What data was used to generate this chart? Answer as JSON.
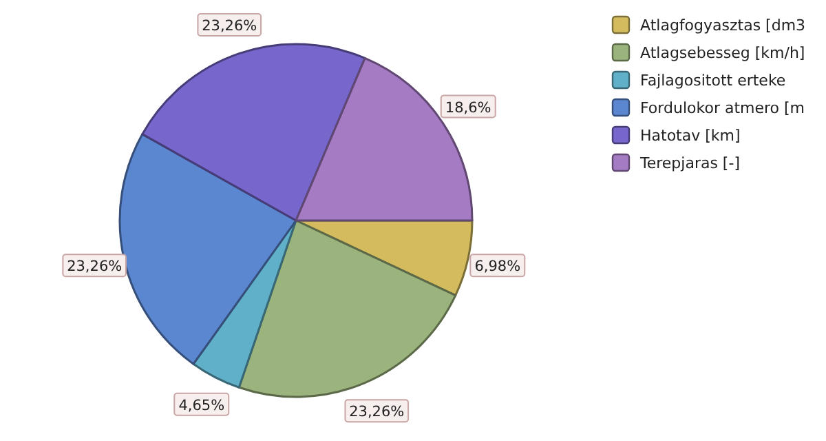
{
  "chart_data": {
    "type": "pie",
    "categories": [
      "Atlagfogyasztas [dm3",
      "Atlagsebesseg [km/h]",
      "Fajlagositott erteke",
      "Fordulokor atmero [m",
      "Hatotav [km]",
      "Terepjaras [-]"
    ],
    "values": [
      6.98,
      23.26,
      4.65,
      23.26,
      23.26,
      18.6
    ],
    "value_labels": [
      "6,98%",
      "23,26%",
      "4,65%",
      "23,26%",
      "23,26%",
      "18,6%"
    ],
    "colors": [
      "#d4bc5e",
      "#9bb37c",
      "#5fb0c8",
      "#5b87d0",
      "#7766cc",
      "#a57bc4"
    ],
    "legend": "top right"
  }
}
